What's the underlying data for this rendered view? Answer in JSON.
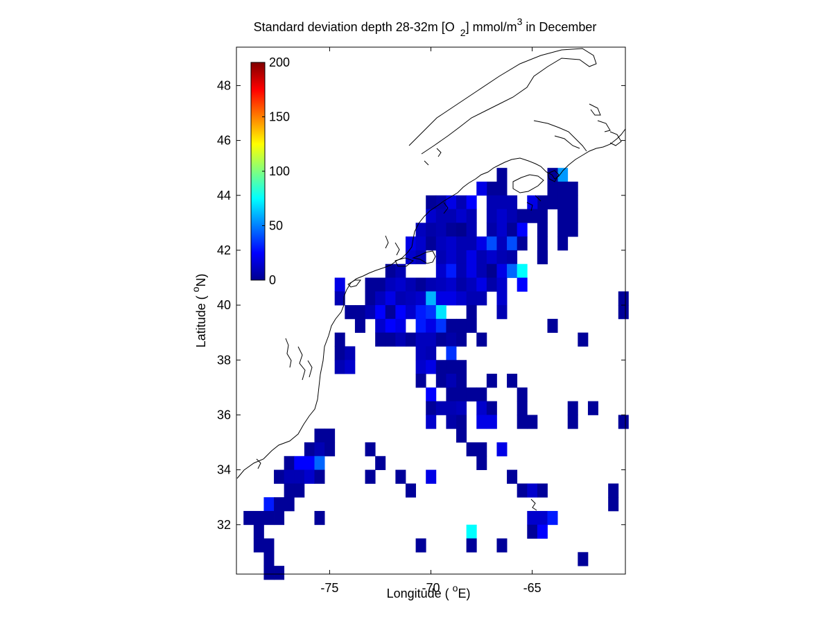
{
  "chart_data": {
    "type": "heatmap",
    "title": {
      "prefix": "Standard deviation depth 28-32m [O",
      "sub": "2",
      "middle": "] mmol/m",
      "sup": "3",
      "suffix": " in December"
    },
    "xlabel": {
      "text": "Longitude ( ",
      "sup": "o",
      "unit": "E)"
    },
    "ylabel": {
      "text": "Latitude ( ",
      "sup": "o",
      "unit": "N)"
    },
    "xlim": [
      -79.6,
      -60.4
    ],
    "ylim": [
      30.2,
      49.4
    ],
    "xticks": [
      -75,
      -70,
      -65
    ],
    "yticks": [
      32,
      34,
      36,
      38,
      40,
      42,
      44,
      46,
      48
    ],
    "cell_size_deg": 0.5,
    "colorbar": {
      "colormap": "jet",
      "range": [
        0,
        200
      ],
      "ticks": [
        0,
        50,
        100,
        150,
        200
      ],
      "placement": "top-left"
    },
    "cells": [
      [
        -63.5,
        44.75,
        55
      ],
      [
        -64.0,
        44.75,
        5
      ],
      [
        -64.0,
        44.25,
        5
      ],
      [
        -64.0,
        43.75,
        5
      ],
      [
        -63.0,
        44.25,
        5
      ],
      [
        -63.0,
        43.75,
        5
      ],
      [
        -63.0,
        43.25,
        5
      ],
      [
        -63.0,
        42.75,
        5
      ],
      [
        -63.5,
        44.25,
        5
      ],
      [
        -63.5,
        43.75,
        5
      ],
      [
        -63.5,
        43.25,
        5
      ],
      [
        -63.5,
        42.75,
        5
      ],
      [
        -63.5,
        42.25,
        5
      ],
      [
        -64.5,
        43.75,
        5
      ],
      [
        -64.5,
        43.25,
        5
      ],
      [
        -64.5,
        42.75,
        5
      ],
      [
        -64.5,
        42.25,
        5
      ],
      [
        -64.5,
        41.75,
        5
      ],
      [
        -65.0,
        43.75,
        20
      ],
      [
        -65.0,
        43.25,
        5
      ],
      [
        -66.5,
        44.75,
        5
      ],
      [
        -66.5,
        44.25,
        5
      ],
      [
        -67.0,
        44.25,
        5
      ],
      [
        -67.5,
        44.25,
        20
      ],
      [
        -69.5,
        43.75,
        8
      ],
      [
        -69.0,
        43.75,
        20
      ],
      [
        -68.5,
        43.75,
        10
      ],
      [
        -68.0,
        43.75,
        25
      ],
      [
        -67.0,
        43.75,
        10
      ],
      [
        -66.5,
        43.75,
        10
      ],
      [
        -66.0,
        43.75,
        10
      ],
      [
        -70.0,
        43.75,
        5
      ],
      [
        -70.0,
        43.25,
        15
      ],
      [
        -69.5,
        43.25,
        10
      ],
      [
        -69.0,
        43.25,
        10
      ],
      [
        -68.5,
        43.25,
        15
      ],
      [
        -68.0,
        43.25,
        10
      ],
      [
        -67.0,
        43.25,
        10
      ],
      [
        -66.5,
        43.25,
        15
      ],
      [
        -66.0,
        43.25,
        10
      ],
      [
        -65.5,
        43.25,
        5
      ],
      [
        -70.5,
        42.75,
        12
      ],
      [
        -70.0,
        42.75,
        8
      ],
      [
        -69.5,
        42.75,
        10
      ],
      [
        -69.0,
        42.75,
        5
      ],
      [
        -68.5,
        42.75,
        3
      ],
      [
        -68.0,
        42.75,
        10
      ],
      [
        -67.0,
        42.75,
        8
      ],
      [
        -66.5,
        42.75,
        15
      ],
      [
        -66.0,
        42.75,
        5
      ],
      [
        -65.5,
        42.75,
        25
      ],
      [
        -71.0,
        42.25,
        20
      ],
      [
        -70.5,
        42.25,
        15
      ],
      [
        -70.0,
        42.25,
        5
      ],
      [
        -69.5,
        42.25,
        12
      ],
      [
        -69.0,
        42.25,
        15
      ],
      [
        -68.5,
        42.25,
        10
      ],
      [
        -68.0,
        42.25,
        10
      ],
      [
        -67.5,
        42.25,
        20
      ],
      [
        -67.0,
        42.25,
        40
      ],
      [
        -66.5,
        42.25,
        12
      ],
      [
        -66.0,
        42.25,
        40
      ],
      [
        -65.5,
        42.25,
        5
      ],
      [
        -71.0,
        41.75,
        15
      ],
      [
        -70.5,
        41.75,
        10
      ],
      [
        -69.5,
        41.75,
        10
      ],
      [
        -69.0,
        41.75,
        15
      ],
      [
        -68.5,
        41.75,
        10
      ],
      [
        -68.0,
        41.75,
        20
      ],
      [
        -67.5,
        41.75,
        10
      ],
      [
        -67.0,
        41.75,
        15
      ],
      [
        -66.5,
        41.75,
        10
      ],
      [
        -66.0,
        41.75,
        8
      ],
      [
        -64.5,
        41.75,
        5
      ],
      [
        -72.0,
        41.25,
        5
      ],
      [
        -71.5,
        41.25,
        10
      ],
      [
        -69.5,
        41.25,
        15
      ],
      [
        -69.0,
        41.25,
        30
      ],
      [
        -68.5,
        41.25,
        10
      ],
      [
        -68.0,
        41.25,
        20
      ],
      [
        -67.5,
        41.25,
        10
      ],
      [
        -67.0,
        41.25,
        3
      ],
      [
        -66.5,
        41.25,
        20
      ],
      [
        -66.0,
        41.25,
        45
      ],
      [
        -65.5,
        41.25,
        75
      ],
      [
        -74.5,
        40.75,
        20
      ],
      [
        -73.0,
        40.75,
        5
      ],
      [
        -72.5,
        40.75,
        5
      ],
      [
        -72.0,
        40.75,
        12
      ],
      [
        -71.5,
        40.75,
        15
      ],
      [
        -71.0,
        40.75,
        10
      ],
      [
        -70.5,
        40.75,
        5
      ],
      [
        -70.0,
        40.75,
        10
      ],
      [
        -69.5,
        40.75,
        12
      ],
      [
        -69.0,
        40.75,
        15
      ],
      [
        -68.5,
        40.75,
        8
      ],
      [
        -68.0,
        40.75,
        12
      ],
      [
        -67.5,
        40.75,
        20
      ],
      [
        -67.0,
        40.75,
        8
      ],
      [
        -66.5,
        40.75,
        15
      ],
      [
        -65.5,
        40.75,
        25
      ],
      [
        -74.5,
        40.25,
        10
      ],
      [
        -73.0,
        40.25,
        5
      ],
      [
        -72.5,
        40.25,
        12
      ],
      [
        -72.0,
        40.25,
        20
      ],
      [
        -71.5,
        40.25,
        10
      ],
      [
        -71.0,
        40.25,
        12
      ],
      [
        -70.5,
        40.25,
        15
      ],
      [
        -70.0,
        40.25,
        60
      ],
      [
        -69.5,
        40.25,
        20
      ],
      [
        -69.0,
        40.25,
        20
      ],
      [
        -68.5,
        40.25,
        15
      ],
      [
        -68.0,
        40.25,
        10
      ],
      [
        -67.5,
        40.25,
        10
      ],
      [
        -66.5,
        40.25,
        15
      ],
      [
        -60.5,
        40.25,
        5
      ],
      [
        -74.0,
        39.75,
        5
      ],
      [
        -73.5,
        39.75,
        5
      ],
      [
        -73.0,
        39.75,
        10
      ],
      [
        -72.5,
        39.75,
        25
      ],
      [
        -72.0,
        39.75,
        5
      ],
      [
        -71.5,
        39.75,
        25
      ],
      [
        -71.0,
        39.75,
        15
      ],
      [
        -70.5,
        39.75,
        30
      ],
      [
        -70.0,
        39.75,
        35
      ],
      [
        -69.5,
        39.75,
        70
      ],
      [
        -68.0,
        39.75,
        5
      ],
      [
        -66.5,
        39.75,
        10
      ],
      [
        -60.5,
        39.75,
        5
      ],
      [
        -73.5,
        39.25,
        5
      ],
      [
        -72.5,
        39.25,
        15
      ],
      [
        -72.0,
        39.25,
        25
      ],
      [
        -71.5,
        39.25,
        20
      ],
      [
        -70.5,
        39.25,
        30
      ],
      [
        -70.0,
        39.25,
        20
      ],
      [
        -69.5,
        39.25,
        35
      ],
      [
        -69.0,
        39.25,
        5
      ],
      [
        -68.5,
        39.25,
        5
      ],
      [
        -68.0,
        39.25,
        5
      ],
      [
        -64.0,
        39.25,
        5
      ],
      [
        -74.5,
        38.75,
        5
      ],
      [
        -72.5,
        38.75,
        5
      ],
      [
        -72.0,
        38.75,
        5
      ],
      [
        -71.5,
        38.75,
        10
      ],
      [
        -71.0,
        38.75,
        5
      ],
      [
        -70.5,
        38.75,
        12
      ],
      [
        -70.0,
        38.75,
        12
      ],
      [
        -69.5,
        38.75,
        5
      ],
      [
        -69.0,
        38.75,
        8
      ],
      [
        -68.5,
        38.75,
        5
      ],
      [
        -67.5,
        38.75,
        5
      ],
      [
        -62.5,
        38.75,
        5
      ],
      [
        -74.5,
        38.25,
        5
      ],
      [
        -74.0,
        38.25,
        10
      ],
      [
        -70.5,
        38.25,
        12
      ],
      [
        -70.0,
        38.25,
        10
      ],
      [
        -69.0,
        38.25,
        35
      ],
      [
        -74.5,
        37.75,
        10
      ],
      [
        -74.0,
        37.75,
        15
      ],
      [
        -70.5,
        37.75,
        15
      ],
      [
        -70.0,
        37.75,
        20
      ],
      [
        -69.5,
        37.75,
        5
      ],
      [
        -69.0,
        37.75,
        5
      ],
      [
        -68.5,
        37.75,
        5
      ],
      [
        -70.5,
        37.25,
        5
      ],
      [
        -69.5,
        37.25,
        5
      ],
      [
        -69.0,
        37.25,
        10
      ],
      [
        -68.5,
        37.25,
        5
      ],
      [
        -67.0,
        37.25,
        5
      ],
      [
        -66.0,
        37.25,
        5
      ],
      [
        -70.0,
        36.75,
        25
      ],
      [
        -69.0,
        36.75,
        5
      ],
      [
        -68.5,
        36.75,
        5
      ],
      [
        -68.0,
        36.75,
        5
      ],
      [
        -67.5,
        36.75,
        5
      ],
      [
        -65.5,
        36.75,
        5
      ],
      [
        -70.0,
        36.25,
        5
      ],
      [
        -69.5,
        36.25,
        10
      ],
      [
        -69.0,
        36.25,
        10
      ],
      [
        -68.5,
        36.25,
        12
      ],
      [
        -67.5,
        36.25,
        15
      ],
      [
        -67.0,
        36.25,
        5
      ],
      [
        -65.5,
        36.25,
        5
      ],
      [
        -63.0,
        36.25,
        5
      ],
      [
        -62.0,
        36.25,
        5
      ],
      [
        -70.0,
        35.75,
        15
      ],
      [
        -69.0,
        35.75,
        8
      ],
      [
        -68.5,
        35.75,
        5
      ],
      [
        -67.5,
        35.75,
        20
      ],
      [
        -67.0,
        35.75,
        20
      ],
      [
        -65.5,
        35.75,
        5
      ],
      [
        -65.0,
        35.75,
        5
      ],
      [
        -63.0,
        35.75,
        5
      ],
      [
        -60.5,
        35.75,
        5
      ],
      [
        -75.5,
        35.25,
        5
      ],
      [
        -75.0,
        35.25,
        5
      ],
      [
        -68.5,
        35.25,
        5
      ],
      [
        -76.0,
        34.75,
        5
      ],
      [
        -75.5,
        34.75,
        10
      ],
      [
        -75.0,
        34.75,
        5
      ],
      [
        -73.0,
        34.75,
        5
      ],
      [
        -68.0,
        34.75,
        5
      ],
      [
        -67.5,
        34.75,
        5
      ],
      [
        -66.5,
        34.75,
        20
      ],
      [
        -77.0,
        34.25,
        5
      ],
      [
        -76.5,
        34.25,
        25
      ],
      [
        -76.0,
        34.25,
        25
      ],
      [
        -75.5,
        34.25,
        45
      ],
      [
        -72.5,
        34.25,
        5
      ],
      [
        -67.5,
        34.25,
        5
      ],
      [
        -77.5,
        33.75,
        5
      ],
      [
        -77.0,
        33.75,
        10
      ],
      [
        -76.5,
        33.75,
        10
      ],
      [
        -76.0,
        33.75,
        15
      ],
      [
        -75.5,
        33.75,
        5
      ],
      [
        -73.0,
        33.75,
        5
      ],
      [
        -71.5,
        33.75,
        5
      ],
      [
        -70.0,
        33.75,
        20
      ],
      [
        -66.0,
        33.75,
        5
      ],
      [
        -77.0,
        33.25,
        5
      ],
      [
        -76.5,
        33.25,
        5
      ],
      [
        -71.0,
        33.25,
        5
      ],
      [
        -65.5,
        33.25,
        5
      ],
      [
        -65.0,
        33.25,
        15
      ],
      [
        -64.5,
        33.25,
        5
      ],
      [
        -61.0,
        33.25,
        5
      ],
      [
        -78.0,
        32.75,
        30
      ],
      [
        -77.5,
        32.75,
        5
      ],
      [
        -77.0,
        32.75,
        5
      ],
      [
        -61.0,
        32.75,
        5
      ],
      [
        -79.0,
        32.25,
        5
      ],
      [
        -78.5,
        32.25,
        5
      ],
      [
        -78.0,
        32.25,
        5
      ],
      [
        -77.5,
        32.25,
        5
      ],
      [
        -75.5,
        32.25,
        5
      ],
      [
        -65.0,
        32.25,
        15
      ],
      [
        -64.5,
        32.25,
        15
      ],
      [
        -64.0,
        32.25,
        30
      ],
      [
        -78.5,
        31.75,
        5
      ],
      [
        -68.0,
        31.75,
        75
      ],
      [
        -65.0,
        31.75,
        5
      ],
      [
        -64.5,
        31.75,
        25
      ],
      [
        -78.5,
        31.25,
        5
      ],
      [
        -78.0,
        31.25,
        5
      ],
      [
        -70.5,
        31.25,
        5
      ],
      [
        -68.0,
        31.25,
        5
      ],
      [
        -66.5,
        31.25,
        5
      ],
      [
        -78.0,
        30.75,
        5
      ],
      [
        -62.5,
        30.75,
        5
      ],
      [
        -78.0,
        30.25,
        5
      ],
      [
        -77.5,
        30.25,
        5
      ]
    ]
  }
}
